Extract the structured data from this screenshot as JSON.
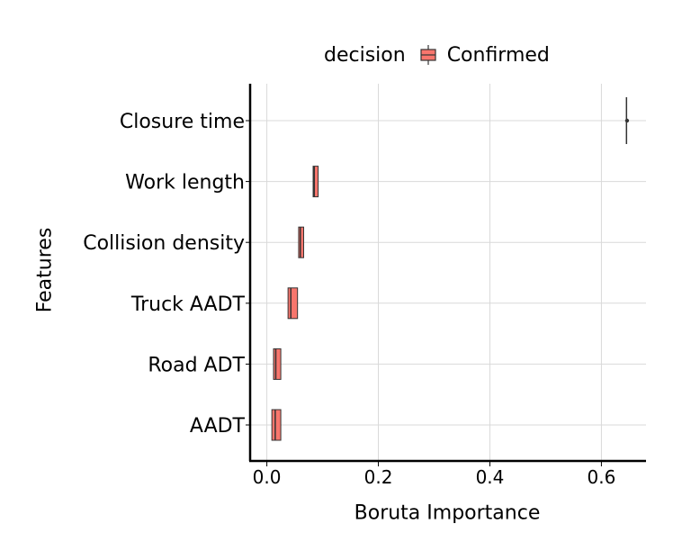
{
  "chart_data": {
    "type": "boxplot",
    "orientation": "horizontal",
    "title": "",
    "xlabel": "Boruta Importance",
    "ylabel": "Features",
    "xlim": [
      -0.03,
      0.68
    ],
    "xticks": [
      0.0,
      0.2,
      0.4,
      0.6
    ],
    "xtick_labels": [
      "0.0",
      "0.2",
      "0.4",
      "0.6"
    ],
    "grid": true,
    "legend": {
      "title": "decision",
      "placement": "top",
      "entries": [
        {
          "label": "Confirmed",
          "color": "#F8766D"
        }
      ]
    },
    "categories": [
      "Closure time",
      "Work length",
      "Collision density",
      "Truck AADT",
      "Road ADT",
      "AADT"
    ],
    "boxes": [
      {
        "feature": "Closure time",
        "q1": 0.645,
        "median": 0.645,
        "q3": 0.645,
        "whisker_low": 0.645,
        "whisker_high": 0.645,
        "outliers": [
          0.646
        ]
      },
      {
        "feature": "Work length",
        "q1": 0.083,
        "median": 0.085,
        "q3": 0.092,
        "whisker_low": 0.083,
        "whisker_high": 0.092,
        "outliers": []
      },
      {
        "feature": "Collision density",
        "q1": 0.057,
        "median": 0.06,
        "q3": 0.066,
        "whisker_low": 0.057,
        "whisker_high": 0.066,
        "outliers": []
      },
      {
        "feature": "Truck AADT",
        "q1": 0.038,
        "median": 0.043,
        "q3": 0.055,
        "whisker_low": 0.038,
        "whisker_high": 0.055,
        "outliers": []
      },
      {
        "feature": "Road ADT",
        "q1": 0.012,
        "median": 0.016,
        "q3": 0.025,
        "whisker_low": 0.012,
        "whisker_high": 0.025,
        "outliers": []
      },
      {
        "feature": "AADT",
        "q1": 0.009,
        "median": 0.015,
        "q3": 0.025,
        "whisker_low": 0.009,
        "whisker_high": 0.025,
        "outliers": []
      }
    ],
    "colors": {
      "fill": "#F8766D",
      "stroke": "#333333",
      "grid": "#d9d9d9",
      "axis": "#000000"
    }
  }
}
